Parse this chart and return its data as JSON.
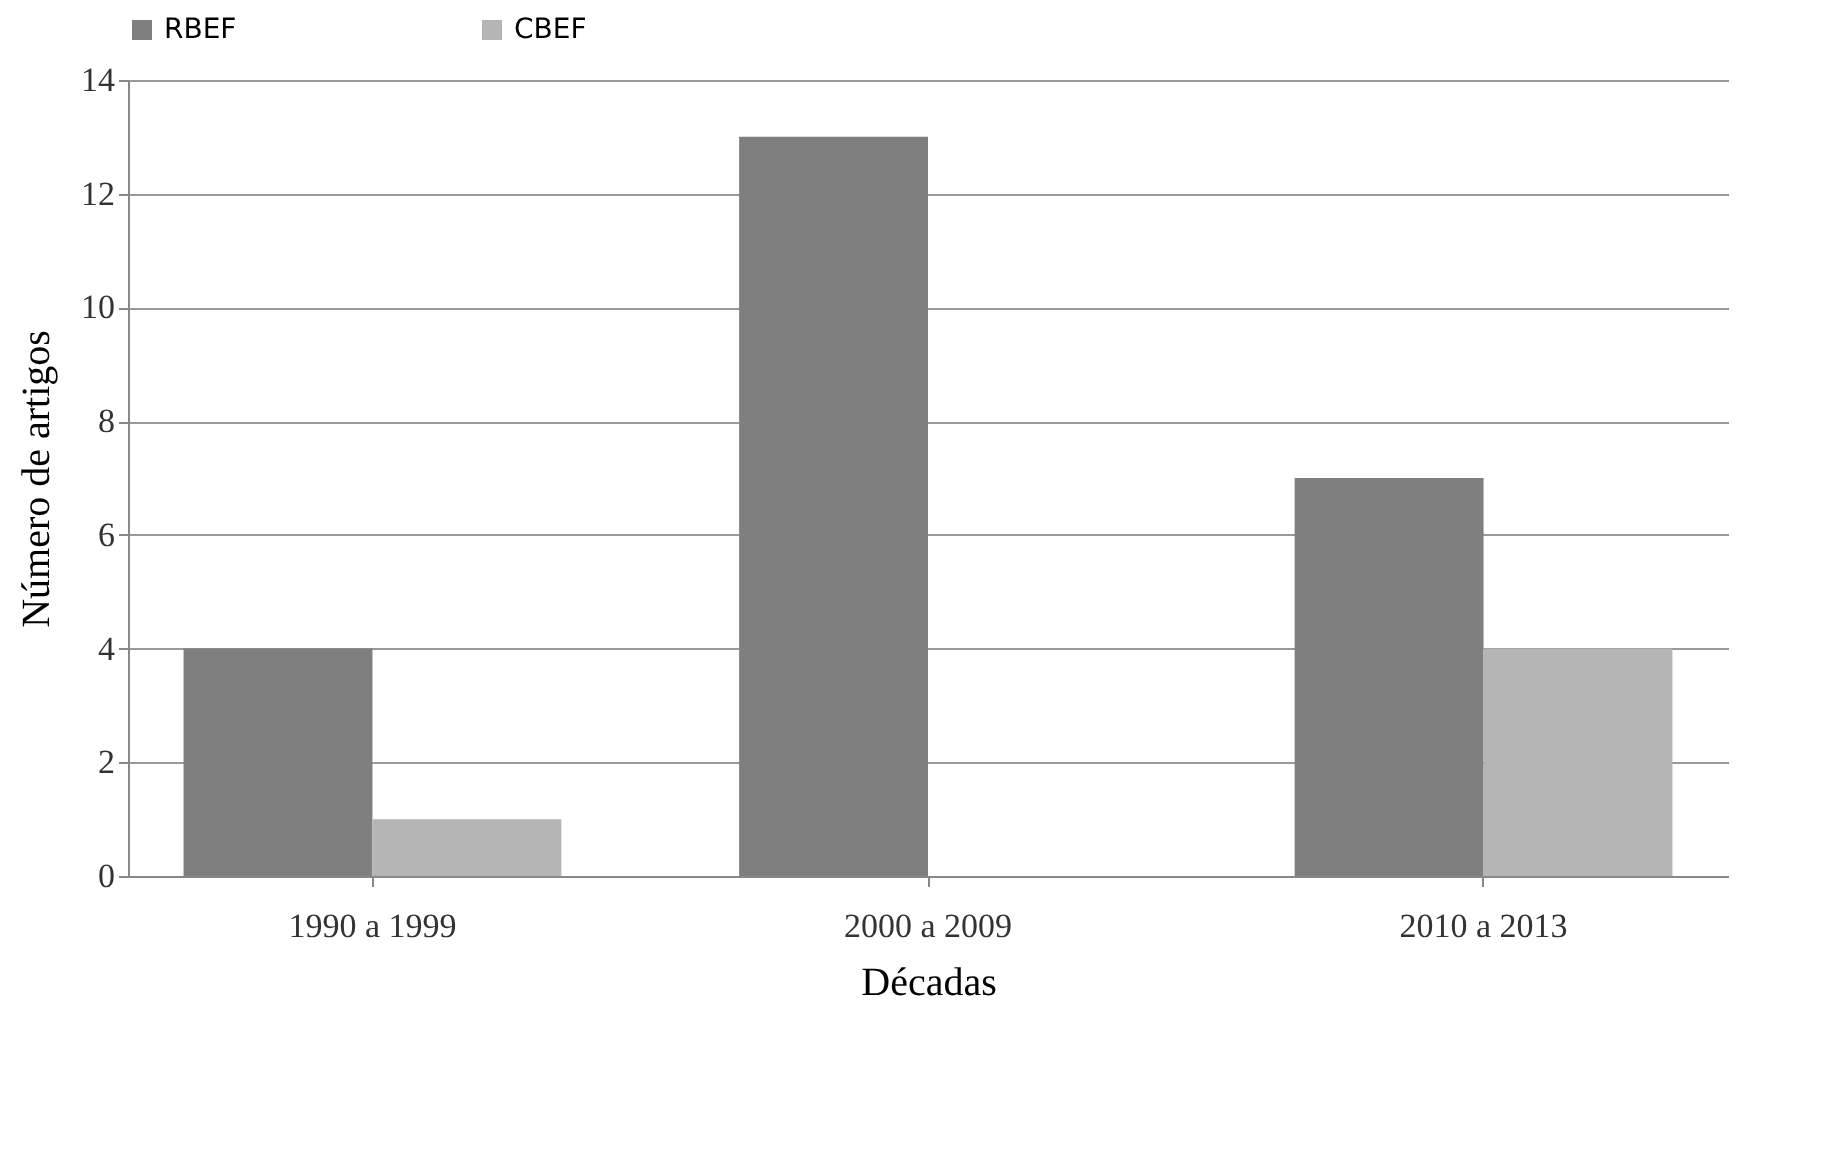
{
  "chart_data": {
    "type": "bar",
    "xlabel": "Décadas",
    "ylabel": "Número de artigos",
    "categories": [
      "1990 a 1999",
      "2000 a 2009",
      "2010 a 2013"
    ],
    "series": [
      {
        "name": "RBEF",
        "color": "#7f7f7f",
        "values": [
          4,
          13,
          7
        ]
      },
      {
        "name": "CBEF",
        "color": "#b5b5b5",
        "values": [
          1,
          0,
          4
        ]
      }
    ],
    "ylim": [
      0,
      14
    ],
    "yticks": [
      0,
      2,
      4,
      6,
      8,
      10,
      12,
      14
    ],
    "grid": "y",
    "legend": "top"
  }
}
